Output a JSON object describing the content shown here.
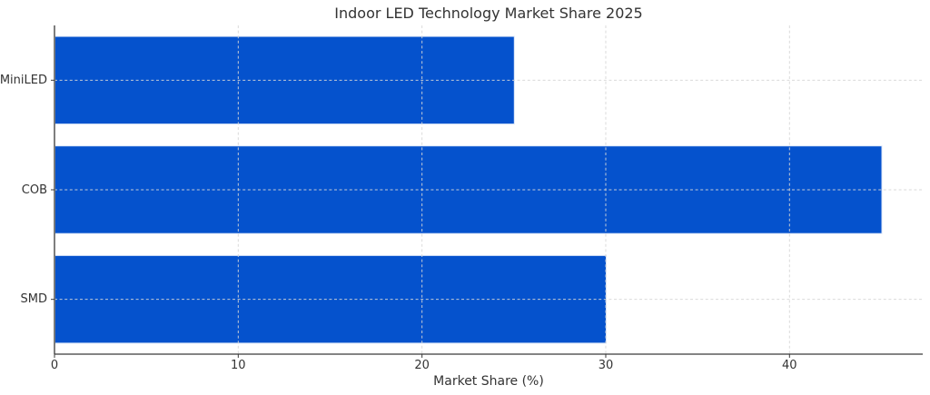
{
  "figure": {
    "background": "#ffffff"
  },
  "chart_data": {
    "type": "bar",
    "orientation": "horizontal",
    "title": "Indoor LED Technology Market Share 2025",
    "xlabel": "Market Share (%)",
    "ylabel": "",
    "categories": [
      "MiniLED",
      "COB",
      "SMD"
    ],
    "values": [
      25,
      45,
      30
    ],
    "x_ticks": [
      0,
      10,
      20,
      30,
      40
    ],
    "xlim": [
      0,
      47.25
    ],
    "bar_color": "#0552cd",
    "bar_edge_color": "#dce7f8",
    "grid": true,
    "grid_style": "dashed",
    "grid_color": "#d7d7d7",
    "axis_color": "#3a3a3a",
    "text_color": "#333333",
    "legend": null
  }
}
